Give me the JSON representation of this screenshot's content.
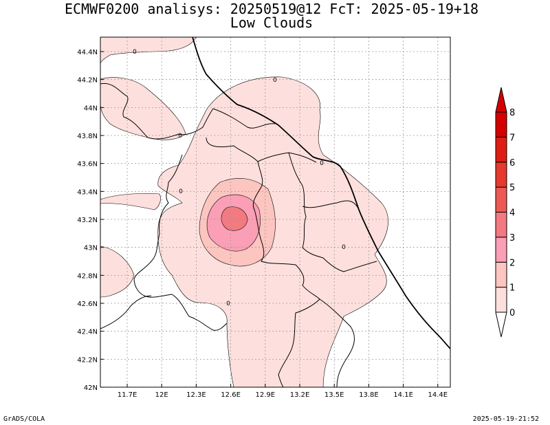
{
  "header": {
    "title_line1": "ECMWF0200 analisys: 20250519@12 FcT: 2025-05-19+18",
    "title_line2": "Low Clouds"
  },
  "footer": {
    "left": "GrADS/COLA",
    "right": "2025-05-19-21:52"
  },
  "map": {
    "lon_labels": [
      "11.7E",
      "12E",
      "12.3E",
      "12.6E",
      "12.9E",
      "13.2E",
      "13.5E",
      "13.8E",
      "14.1E",
      "14.4E"
    ],
    "lat_labels": [
      "44.4N",
      "44.2N",
      "44N",
      "43.8N",
      "43.6N",
      "43.4N",
      "43.2N",
      "43N",
      "42.8N",
      "42.6N",
      "42.4N",
      "42.2N",
      "42N"
    ],
    "contour_labels": [
      "0",
      "0",
      "0",
      "0",
      "0",
      "0",
      "0"
    ]
  },
  "colorbar": {
    "levels": [
      "0",
      "1",
      "2",
      "3",
      "4",
      "5",
      "6",
      "7",
      "8"
    ],
    "colors": [
      "#ffffff",
      "#fde0dd",
      "#fcc5c0",
      "#fa9fb5",
      "#f27a80",
      "#ed5a55",
      "#e63a2e",
      "#de1e14",
      "#d40000"
    ]
  }
}
